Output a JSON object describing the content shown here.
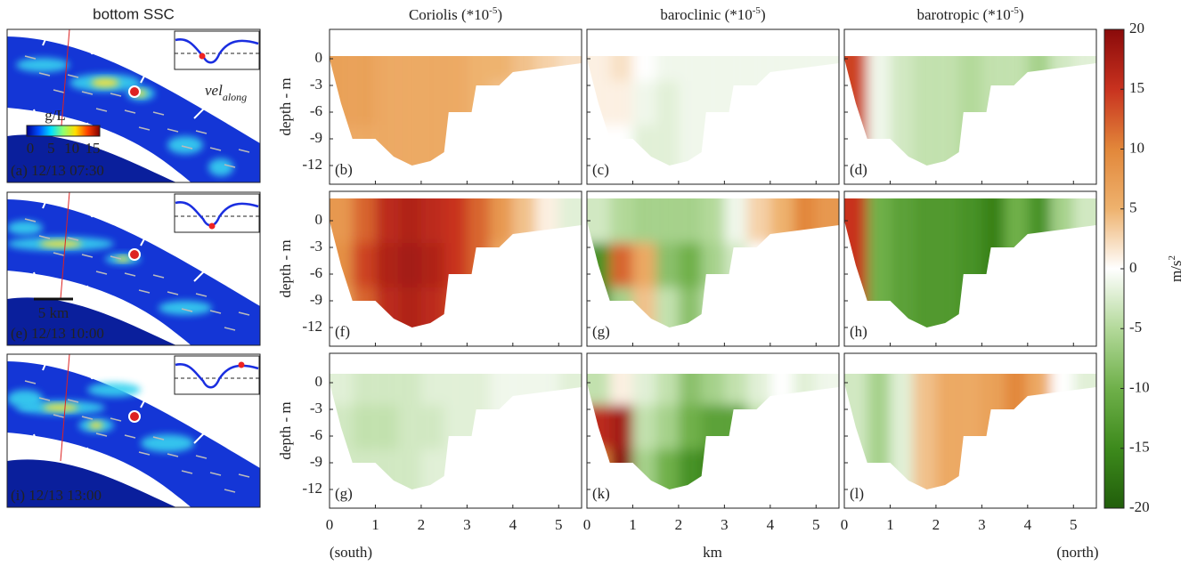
{
  "chart_data": {
    "type": "heatmap",
    "map_title": "bottom SSC",
    "columns": [
      {
        "title": "Coriolis (*10",
        "title_sup": "-5",
        "title_end": ")"
      },
      {
        "title": "baroclinic (*10",
        "title_sup": "-5",
        "title_end": ")"
      },
      {
        "title": "barotropic (*10",
        "title_sup": "-5",
        "title_end": ")"
      }
    ],
    "ylabel": "depth - m",
    "xlabel": "km",
    "xlabel_left": "(south)",
    "xlabel_right": "(north)",
    "xlim": [
      0,
      5.5
    ],
    "xticks": [
      0,
      1,
      2,
      3,
      4,
      5
    ],
    "ylim": [
      -14.1,
      3.3
    ],
    "yticks": [
      0,
      -3,
      -6,
      -9,
      -12
    ],
    "x": [
      0.25,
      0.75,
      1.25,
      1.75,
      2.25,
      2.75,
      3.25,
      3.75,
      4.25,
      4.75,
      5.25
    ],
    "depth": [
      0,
      -5,
      -10
    ],
    "bathymetry": {
      "x": [
        0,
        0.25,
        0.5,
        1,
        1.4,
        1.8,
        2.2,
        2.5,
        2.6,
        2.8,
        3.1,
        3.2,
        3.7,
        4.0,
        5.5
      ],
      "depth": [
        0,
        -5,
        -9,
        -9,
        -11,
        -12,
        -11.5,
        -10.5,
        -6,
        -6,
        -6,
        -3,
        -3,
        -1.5,
        -0.5
      ]
    },
    "rows": [
      {
        "map_label": "(a) 12/13 07:30",
        "surface": 0.3,
        "panels": [
          {
            "label": "(b)",
            "values": [
              [
                7,
                7,
                6,
                6,
                6,
                6,
                5,
                5,
                4,
                3,
                2
              ],
              [
                7,
                7,
                6,
                6,
                6,
                6,
                5,
                4,
                3,
                3,
                2
              ],
              [
                6,
                6,
                6,
                6,
                6,
                6,
                5,
                4,
                3,
                3,
                2
              ]
            ]
          },
          {
            "label": "(c)",
            "values": [
              [
                1,
                2,
                0,
                -1,
                -1,
                -1,
                -1,
                -1,
                -1,
                -1,
                -1
              ],
              [
                1,
                1,
                -1,
                -2,
                -1,
                -1,
                -1,
                -1,
                -1,
                -1,
                -1
              ],
              [
                0,
                0,
                -2,
                -2,
                -1,
                -1,
                -1,
                -1,
                -1,
                -1,
                -1
              ]
            ]
          },
          {
            "label": "(d)",
            "values": [
              [
                14,
                -1,
                -3,
                -4,
                -4,
                -5,
                -4,
                -4,
                -6,
                -3,
                -2
              ],
              [
                14,
                -1,
                -3,
                -4,
                -4,
                -5,
                -4,
                -4,
                -6,
                -3,
                -2
              ],
              [
                14,
                -1,
                -3,
                -4,
                -4,
                -5,
                -4,
                -4,
                -6,
                -3,
                -2
              ]
            ]
          }
        ]
      },
      {
        "map_label": "(e) 12/13 10:00",
        "surface": 2.5,
        "panels": [
          {
            "label": "(f)",
            "values": [
              [
                8,
                12,
                16,
                17,
                16,
                15,
                12,
                8,
                4,
                1,
                -2
              ],
              [
                9,
                14,
                17,
                18,
                17,
                15,
                12,
                6,
                2,
                0,
                -1
              ],
              [
                7,
                12,
                16,
                17,
                16,
                14,
                10,
                5,
                2,
                0,
                -1
              ]
            ]
          },
          {
            "label": "(g)",
            "values": [
              [
                -3,
                -5,
                -6,
                -6,
                -6,
                -5,
                -1,
                3,
                5,
                10,
                8
              ],
              [
                -14,
                12,
                6,
                -8,
                -10,
                -6,
                -3,
                0,
                2,
                4,
                4
              ],
              [
                -16,
                -6,
                4,
                -4,
                -8,
                -4,
                2,
                0,
                0,
                0,
                0
              ]
            ]
          },
          {
            "label": "(h)",
            "values": [
              [
                15,
                -10,
                -12,
                -13,
                -13,
                -14,
                -16,
                -10,
                -14,
                -6,
                -3
              ],
              [
                15,
                -10,
                -12,
                -13,
                -13,
                -14,
                -16,
                -10,
                -14,
                -6,
                -3
              ],
              [
                15,
                -10,
                -12,
                -13,
                -13,
                -14,
                -16,
                -10,
                -14,
                -6,
                -3
              ]
            ]
          }
        ]
      },
      {
        "map_label": "(i)  12/13 13:00",
        "surface": 1.0,
        "panels": [
          {
            "label": "(g)",
            "values": [
              [
                -2,
                -3,
                -3,
                -3,
                -2,
                -2,
                -2,
                -1,
                -1,
                -1,
                -2
              ],
              [
                -3,
                -4,
                -4,
                -3,
                -3,
                -2,
                -2,
                -1,
                -1,
                -1,
                -1
              ],
              [
                -3,
                -3,
                -3,
                -3,
                -2,
                -2,
                -2,
                -1,
                -1,
                -1,
                -1
              ]
            ]
          },
          {
            "label": "(k)",
            "values": [
              [
                -4,
                1,
                -2,
                -4,
                -8,
                -6,
                -4,
                -2,
                0,
                -2,
                -1
              ],
              [
                16,
                18,
                -4,
                -6,
                -10,
                -12,
                -12,
                -4,
                -1,
                -1,
                -1
              ],
              [
                10,
                20,
                -6,
                -10,
                -14,
                -16,
                -12,
                -6,
                -1,
                -1,
                -1
              ]
            ]
          },
          {
            "label": "(l)",
            "values": [
              [
                -3,
                -6,
                -2,
                4,
                6,
                6,
                7,
                10,
                6,
                0,
                -2
              ],
              [
                -3,
                -6,
                -2,
                4,
                6,
                6,
                7,
                10,
                6,
                0,
                -2
              ],
              [
                -3,
                -6,
                -2,
                4,
                6,
                6,
                7,
                10,
                6,
                0,
                -2
              ]
            ]
          }
        ]
      }
    ],
    "colorbar": {
      "lim": [
        -20,
        20
      ],
      "ticks": [
        20,
        15,
        10,
        5,
        0,
        -5,
        -10,
        -15,
        -20
      ],
      "label": "m/s",
      "label_sup": "2",
      "colors": [
        "#215e0b",
        "#3d8a1c",
        "#6fb04a",
        "#b3d99a",
        "#ffffff",
        "#eeb26e",
        "#e2873a",
        "#c8321f",
        "#8a0a0a"
      ]
    },
    "map": {
      "colorbar_label": "g/L",
      "colorbar_ticks": [
        0,
        5,
        10,
        15
      ],
      "scale_label": "5 km",
      "annotation": "vel",
      "annotation_sub": "along"
    }
  }
}
